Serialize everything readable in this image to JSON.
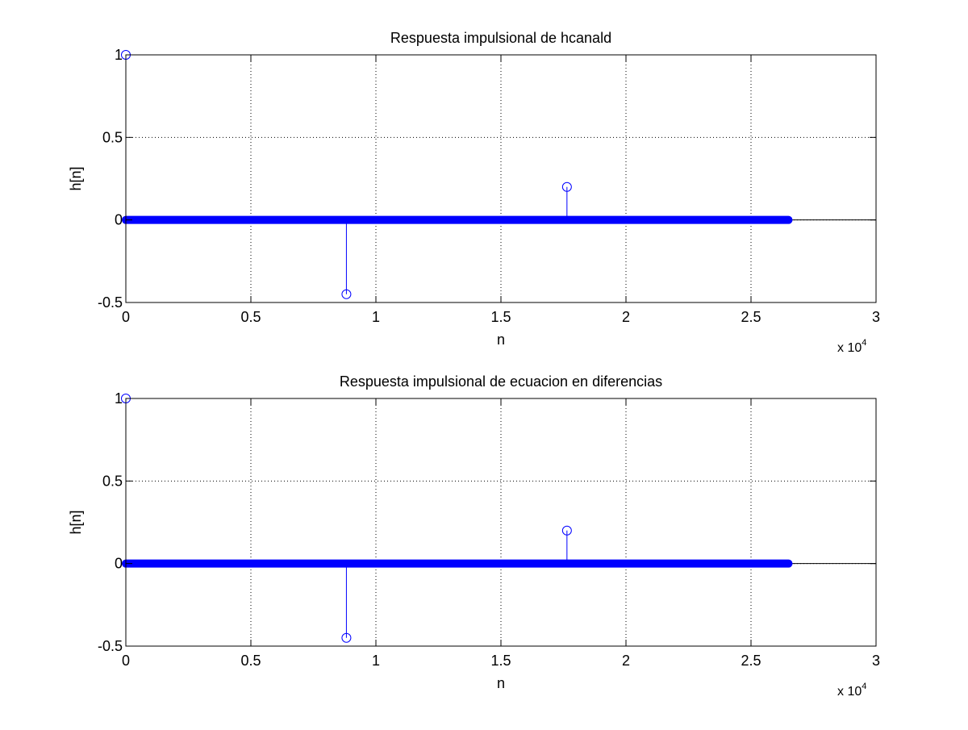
{
  "figure": {
    "background": "#ffffff"
  },
  "colors": {
    "stem": "#0000ff",
    "axis": "#000000",
    "grid": "#000000",
    "baseline": "#000000"
  },
  "chart_data": [
    {
      "type": "stem",
      "title": "Respuesta impulsional de hcanald",
      "xlabel": "n",
      "ylabel": "h[n]",
      "xlim": [
        0,
        30000
      ],
      "ylim": [
        -0.5,
        1
      ],
      "xticks": [
        0,
        5000,
        10000,
        15000,
        20000,
        25000,
        30000
      ],
      "xtick_labels": [
        "0",
        "0.5",
        "1",
        "1.5",
        "2",
        "2.5",
        "3"
      ],
      "yticks": [
        -0.5,
        0,
        0.5,
        1
      ],
      "ytick_labels": [
        "-0.5",
        "0",
        "0.5",
        "1"
      ],
      "x_multiplier": {
        "base": "x 10",
        "exponent": "4"
      },
      "grid": true,
      "baseline": 0,
      "dense_zero_range": [
        0,
        26500
      ],
      "points": [
        {
          "x": 0,
          "y": 1
        },
        {
          "x": 8820,
          "y": -0.45
        },
        {
          "x": 17640,
          "y": 0.2
        }
      ]
    },
    {
      "type": "stem",
      "title": "Respuesta impulsional de ecuacion en diferencias",
      "xlabel": "n",
      "ylabel": "h[n]",
      "xlim": [
        0,
        30000
      ],
      "ylim": [
        -0.5,
        1
      ],
      "xticks": [
        0,
        5000,
        10000,
        15000,
        20000,
        25000,
        30000
      ],
      "xtick_labels": [
        "0",
        "0.5",
        "1",
        "1.5",
        "2",
        "2.5",
        "3"
      ],
      "yticks": [
        -0.5,
        0,
        0.5,
        1
      ],
      "ytick_labels": [
        "-0.5",
        "0",
        "0.5",
        "1"
      ],
      "x_multiplier": {
        "base": "x 10",
        "exponent": "4"
      },
      "grid": true,
      "baseline": 0,
      "dense_zero_range": [
        0,
        26500
      ],
      "points": [
        {
          "x": 0,
          "y": 1
        },
        {
          "x": 8820,
          "y": -0.45
        },
        {
          "x": 17640,
          "y": 0.2
        }
      ]
    }
  ]
}
